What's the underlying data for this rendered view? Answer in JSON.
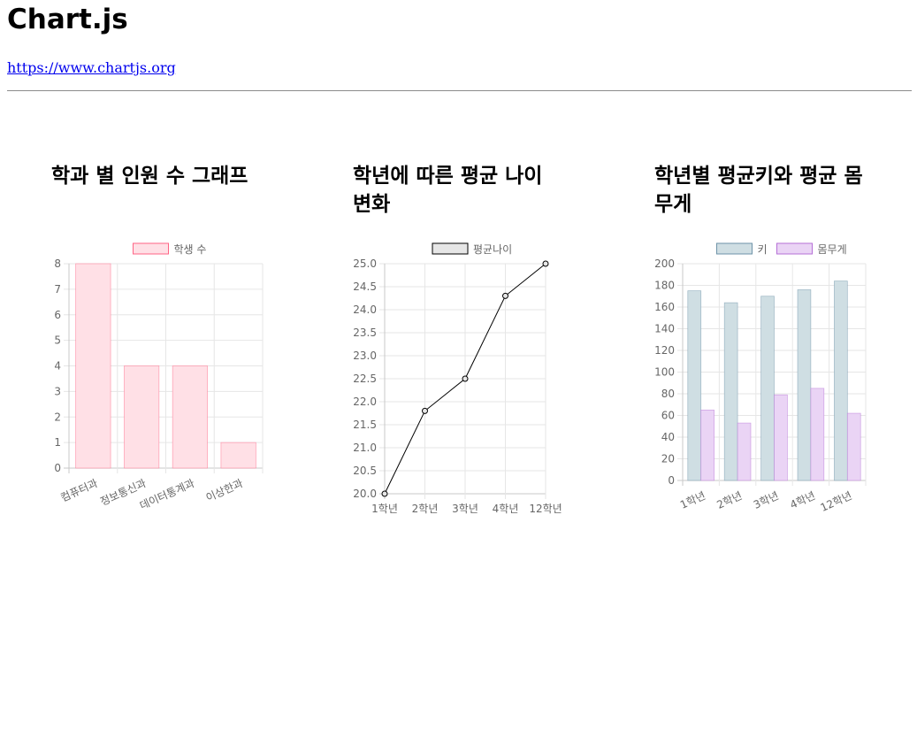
{
  "header": {
    "title": "Chart.js",
    "link_text": "https://www.chartjs.org"
  },
  "charts": [
    {
      "title": "학과 별 인원 수 그래프"
    },
    {
      "title": "학년에 따른 평균 나이 변화"
    },
    {
      "title": "학년별 평균키와 평균 몸무게"
    }
  ],
  "chart_data": [
    {
      "type": "bar",
      "categories": [
        "컴퓨터과",
        "정보통신과",
        "데이터통계과",
        "이상한과"
      ],
      "series": [
        {
          "name": "학생 수",
          "values": [
            8,
            4,
            4,
            1
          ],
          "fill": "#ffe0e6",
          "stroke": "#ff6384"
        }
      ],
      "ylim": [
        0,
        8
      ],
      "yticks": [
        "0",
        "1",
        "2",
        "3",
        "4",
        "5",
        "6",
        "7",
        "8"
      ],
      "legend": "top",
      "grid": true
    },
    {
      "type": "line",
      "categories": [
        "1학년",
        "2학년",
        "3학년",
        "4학년",
        "12학년"
      ],
      "series": [
        {
          "name": "평균나이",
          "values": [
            20.0,
            21.8,
            22.5,
            24.3,
            25.0
          ],
          "fill": "#e6e6e6",
          "stroke": "#000000"
        }
      ],
      "ylim": [
        20,
        25
      ],
      "yticks": [
        "20.0",
        "20.5",
        "21.0",
        "21.5",
        "22.0",
        "22.5",
        "23.0",
        "23.5",
        "24.0",
        "24.5",
        "25.0"
      ],
      "legend": "top",
      "grid": true
    },
    {
      "type": "bar",
      "categories": [
        "1학년",
        "2학년",
        "3학년",
        "4학년",
        "12학년"
      ],
      "series": [
        {
          "name": "키",
          "values": [
            175,
            164,
            170,
            176,
            184
          ],
          "fill": "#cfdee3",
          "stroke": "#6e93a8"
        },
        {
          "name": "몸무게",
          "values": [
            65,
            53,
            79,
            85,
            62
          ],
          "fill": "#ead4f5",
          "stroke": "#b56fd6"
        }
      ],
      "ylim": [
        0,
        200
      ],
      "yticks": [
        "0",
        "20",
        "40",
        "60",
        "80",
        "100",
        "120",
        "140",
        "160",
        "180",
        "200"
      ],
      "legend": "top",
      "grid": true
    }
  ]
}
